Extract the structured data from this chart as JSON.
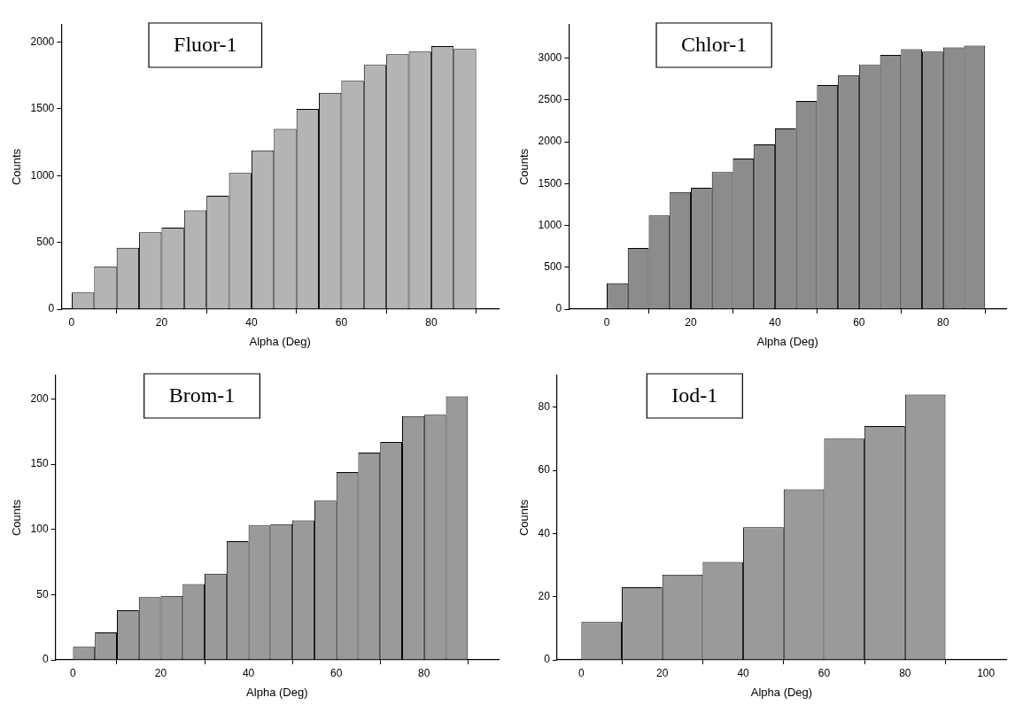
{
  "chart_data": [
    {
      "type": "histogram",
      "title": "Fluor-1",
      "xlabel": "Alpha (Deg)",
      "ylabel": "Counts",
      "color": "#b4b4b4",
      "bins": [
        0,
        5,
        10,
        15,
        20,
        25,
        30,
        35,
        40,
        45,
        50,
        55,
        60,
        65,
        70,
        75,
        80,
        85,
        90
      ],
      "values": [
        125,
        320,
        460,
        575,
        610,
        740,
        850,
        1020,
        1190,
        1350,
        1500,
        1620,
        1710,
        1830,
        1910,
        1930,
        1970,
        1950
      ],
      "xlim": [
        -2.3,
        95
      ],
      "xticks": [
        0,
        20,
        40,
        60,
        80
      ],
      "ylim": [
        0,
        2130
      ],
      "yticks": [
        0,
        500,
        1000,
        1500,
        2000
      ]
    },
    {
      "type": "histogram",
      "title": "Chlor-1",
      "xlabel": "Alpha (Deg)",
      "ylabel": "Counts",
      "color": "#8c8c8c",
      "bins": [
        0,
        5,
        10,
        15,
        20,
        25,
        30,
        35,
        40,
        45,
        50,
        55,
        60,
        65,
        70,
        75,
        80,
        85,
        90
      ],
      "values": [
        310,
        730,
        1120,
        1400,
        1450,
        1640,
        1800,
        1970,
        2160,
        2490,
        2680,
        2800,
        2920,
        3040,
        3110,
        3080,
        3130,
        3150
      ],
      "xlim": [
        -9,
        95
      ],
      "xticks": [
        0,
        20,
        40,
        60,
        80
      ],
      "ylim": [
        0,
        3400
      ],
      "yticks": [
        0,
        500,
        1000,
        1500,
        2000,
        2500,
        3000
      ]
    },
    {
      "type": "histogram",
      "title": "Brom-1",
      "xlabel": "Alpha (Deg)",
      "ylabel": "Counts",
      "color": "#9a9a9a",
      "bins": [
        0,
        5,
        10,
        15,
        20,
        25,
        30,
        35,
        40,
        45,
        50,
        55,
        60,
        65,
        70,
        75,
        80,
        85,
        90
      ],
      "values": [
        10,
        21,
        38,
        48,
        49,
        58,
        66,
        91,
        103,
        104,
        107,
        122,
        144,
        159,
        167,
        187,
        188,
        202
      ],
      "xlim": [
        -4,
        97
      ],
      "xticks": [
        0,
        20,
        40,
        60,
        80
      ],
      "ylim": [
        0,
        218
      ],
      "yticks": [
        0,
        50,
        100,
        150,
        200
      ]
    },
    {
      "type": "histogram",
      "title": "Iod-1",
      "xlabel": "Alpha (Deg)",
      "ylabel": "Counts",
      "color": "#9a9a9a",
      "bins": [
        0,
        10,
        20,
        30,
        40,
        50,
        60,
        70,
        80,
        90
      ],
      "values": [
        12,
        23,
        27,
        31,
        42,
        54,
        70,
        74,
        84
      ],
      "xlim": [
        -6,
        105
      ],
      "xticks": [
        0,
        20,
        40,
        60,
        80,
        100
      ],
      "ylim": [
        0,
        90
      ],
      "yticks": [
        0,
        20,
        40,
        60,
        80
      ]
    }
  ]
}
